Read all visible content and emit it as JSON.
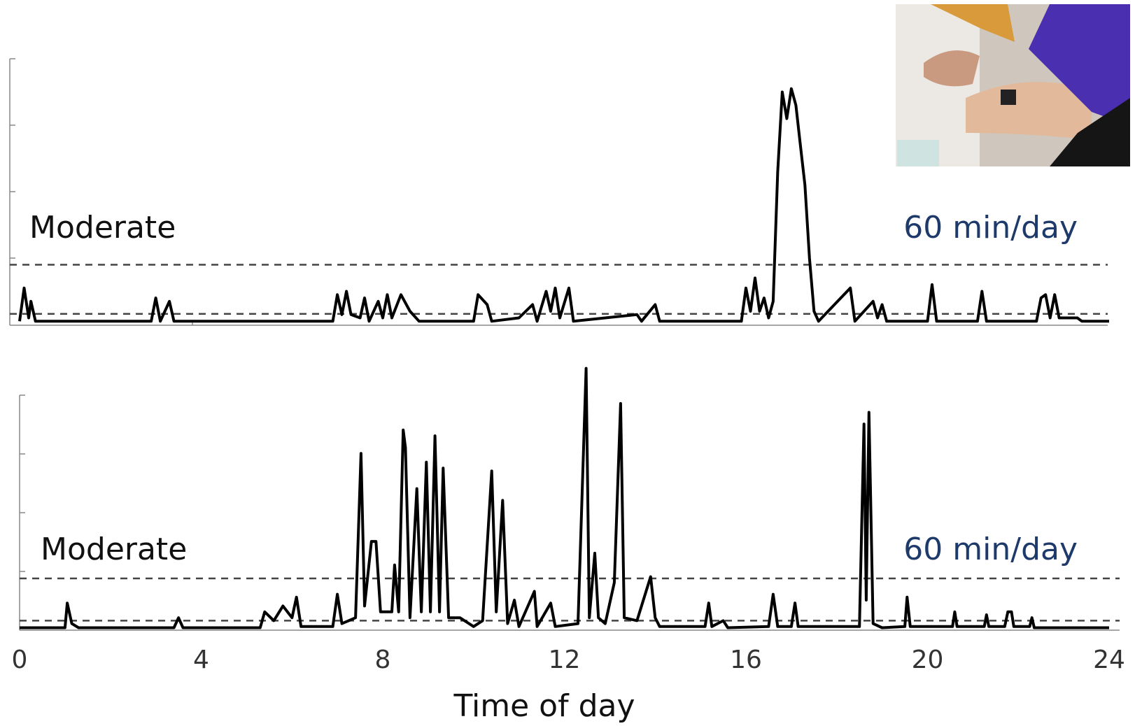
{
  "chart_data": [
    {
      "type": "line",
      "color": "#000000",
      "annotation": "Moderate",
      "threshold_label": "60 min/day",
      "thresholds": [
        0.16,
        0.9
      ],
      "xlim": [
        0,
        24
      ],
      "ylim": [
        0,
        4
      ],
      "x": [
        0,
        0.1,
        0.2,
        0.25,
        0.35,
        2.9,
        3.0,
        3.1,
        3.3,
        3.4,
        6.9,
        7.0,
        7.1,
        7.2,
        7.3,
        7.5,
        7.6,
        7.7,
        7.9,
        8.0,
        8.1,
        8.2,
        8.4,
        8.6,
        8.8,
        10.0,
        10.1,
        10.3,
        10.4,
        11.0,
        11.3,
        11.4,
        11.6,
        11.7,
        11.8,
        11.9,
        12.1,
        12.2,
        13.6,
        13.7,
        14.0,
        14.1,
        15.9,
        16.0,
        16.1,
        16.2,
        16.3,
        16.4,
        16.5,
        16.6,
        16.7,
        16.8,
        16.9,
        17.0,
        17.1,
        17.2,
        17.3,
        17.4,
        17.5,
        17.6,
        18.3,
        18.4,
        18.8,
        18.9,
        19.0,
        19.1,
        20.0,
        20.1,
        20.2,
        21.1,
        21.2,
        21.3,
        22.4,
        22.5,
        22.6,
        22.7,
        22.8,
        22.9,
        23.3,
        23.4,
        24
      ],
      "values": [
        0.05,
        0.55,
        0.1,
        0.35,
        0.05,
        0.05,
        0.4,
        0.05,
        0.35,
        0.05,
        0.05,
        0.45,
        0.15,
        0.5,
        0.15,
        0.1,
        0.4,
        0.05,
        0.35,
        0.1,
        0.45,
        0.1,
        0.45,
        0.2,
        0.05,
        0.05,
        0.45,
        0.3,
        0.05,
        0.1,
        0.3,
        0.05,
        0.5,
        0.2,
        0.55,
        0.1,
        0.55,
        0.05,
        0.15,
        0.05,
        0.3,
        0.05,
        0.05,
        0.55,
        0.2,
        0.7,
        0.2,
        0.4,
        0.1,
        0.35,
        2.3,
        3.5,
        3.1,
        3.55,
        3.3,
        2.7,
        2.1,
        1.0,
        0.2,
        0.05,
        0.55,
        0.05,
        0.35,
        0.1,
        0.3,
        0.05,
        0.05,
        0.6,
        0.05,
        0.05,
        0.5,
        0.05,
        0.05,
        0.4,
        0.45,
        0.1,
        0.45,
        0.1,
        0.1,
        0.05,
        0.05
      ]
    },
    {
      "type": "line",
      "color": "#000000",
      "annotation": "Moderate",
      "threshold_label": "60 min/day",
      "thresholds": [
        0.15,
        0.87
      ],
      "xlim": [
        0,
        24
      ],
      "ylim": [
        0,
        4.6
      ],
      "xticks": [
        0,
        4,
        8,
        12,
        16,
        20,
        24
      ],
      "x_label": "Time of day",
      "x": [
        0,
        1.0,
        1.05,
        1.15,
        1.3,
        3.4,
        3.5,
        3.6,
        5.3,
        5.4,
        5.6,
        5.8,
        6.0,
        6.1,
        6.2,
        6.9,
        7.0,
        7.1,
        7.4,
        7.52,
        7.6,
        7.75,
        7.85,
        7.95,
        8.2,
        8.26,
        8.35,
        8.45,
        8.5,
        8.6,
        8.75,
        8.85,
        8.96,
        9.05,
        9.15,
        9.25,
        9.33,
        9.45,
        9.7,
        10.0,
        10.2,
        10.4,
        10.5,
        10.64,
        10.75,
        10.9,
        11.0,
        11.34,
        11.4,
        11.7,
        11.8,
        12.3,
        12.48,
        12.55,
        12.67,
        12.75,
        12.9,
        13.1,
        13.24,
        13.32,
        13.6,
        13.9,
        14.0,
        14.1,
        15.1,
        15.18,
        15.25,
        15.5,
        15.6,
        16.5,
        16.6,
        16.7,
        17.0,
        17.08,
        17.15,
        18.5,
        18.6,
        18.65,
        18.71,
        18.8,
        19.0,
        19.5,
        19.55,
        19.62,
        20.55,
        20.6,
        20.65,
        21.25,
        21.3,
        21.35,
        21.7,
        21.77,
        21.85,
        21.9,
        22.25,
        22.3,
        22.35,
        24
      ],
      "values": [
        0.03,
        0.03,
        0.45,
        0.1,
        0.03,
        0.03,
        0.2,
        0.03,
        0.03,
        0.3,
        0.15,
        0.4,
        0.2,
        0.55,
        0.05,
        0.05,
        0.6,
        0.1,
        0.2,
        3.0,
        0.4,
        1.5,
        1.5,
        0.3,
        0.3,
        1.1,
        0.3,
        3.4,
        3.1,
        0.2,
        2.4,
        0.3,
        2.85,
        0.3,
        3.3,
        0.3,
        2.75,
        0.2,
        0.2,
        0.05,
        0.15,
        2.7,
        0.3,
        2.2,
        0.1,
        0.5,
        0.05,
        0.65,
        0.05,
        0.45,
        0.05,
        0.1,
        4.45,
        0.2,
        1.3,
        0.2,
        0.1,
        0.8,
        3.85,
        0.2,
        0.15,
        0.9,
        0.2,
        0.05,
        0.05,
        0.45,
        0.05,
        0.15,
        0.03,
        0.05,
        0.6,
        0.05,
        0.05,
        0.45,
        0.05,
        0.05,
        3.5,
        0.5,
        3.7,
        0.1,
        0.03,
        0.05,
        0.55,
        0.05,
        0.05,
        0.3,
        0.05,
        0.05,
        0.25,
        0.05,
        0.05,
        0.3,
        0.3,
        0.05,
        0.05,
        0.2,
        0.03,
        0.03
      ]
    }
  ]
}
